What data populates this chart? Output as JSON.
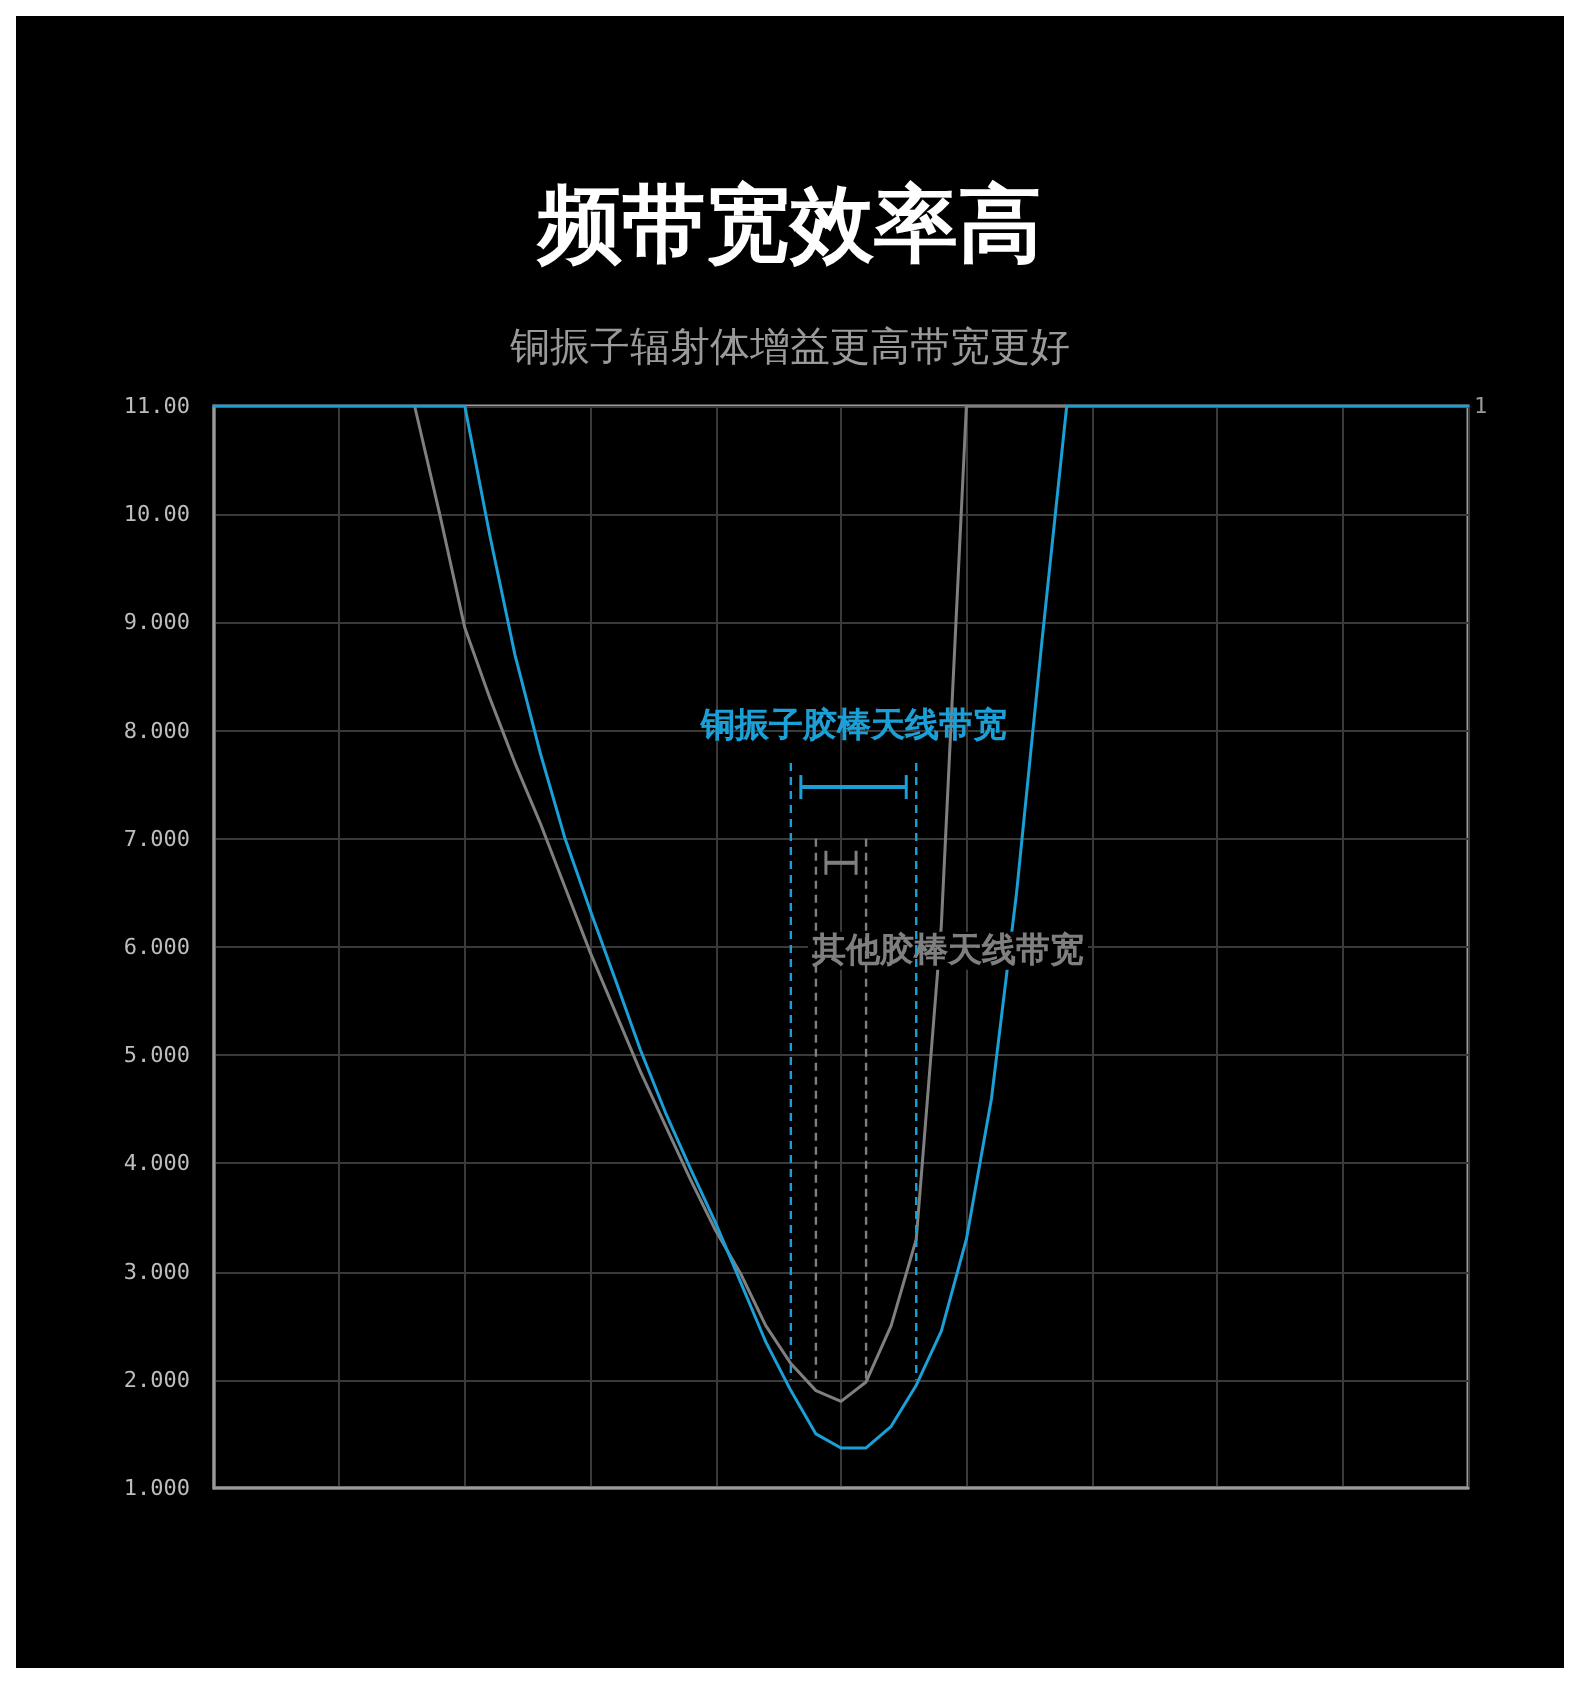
{
  "chart_data": {
    "type": "line",
    "title": "频带宽效率高",
    "subtitle": "铜振子辐射体增益更高带宽更好",
    "categories": [
      null,
      null,
      null,
      null,
      null,
      null,
      null,
      null,
      null,
      null,
      null,
      null,
      null,
      null,
      null,
      null,
      null,
      null,
      null,
      null,
      null,
      null,
      null,
      null,
      null,
      null,
      null,
      null,
      null,
      null,
      null,
      null,
      null,
      null,
      null,
      null,
      null,
      null,
      null,
      null,
      null,
      null,
      null,
      null,
      null,
      null,
      null,
      null,
      null,
      null,
      null
    ],
    "ylim": [
      1,
      11
    ],
    "yticks": [
      {
        "value": 1,
        "label": "1.000"
      },
      {
        "value": 2,
        "label": "2.000"
      },
      {
        "value": 3,
        "label": "3.000"
      },
      {
        "value": 4,
        "label": "4.000"
      },
      {
        "value": 5,
        "label": "5.000"
      },
      {
        "value": 6,
        "label": "6.000"
      },
      {
        "value": 7,
        "label": "7.000"
      },
      {
        "value": 8,
        "label": "8.000"
      },
      {
        "value": 9,
        "label": "9.000"
      },
      {
        "value": 10,
        "label": "10.00"
      },
      {
        "value": 11,
        "label": "11.00"
      }
    ],
    "grid": true,
    "marker": "none",
    "line_style": "solid",
    "series": [
      {
        "color": "#1a9fd6",
        "values": [
          11,
          11,
          11,
          11,
          11,
          11,
          11,
          11,
          11,
          11,
          11,
          9.8,
          8.7,
          7.8,
          7.0,
          6.34,
          5.7,
          5.05,
          4.47,
          3.95,
          3.45,
          2.9,
          2.35,
          1.9,
          1.5,
          1.37,
          1.37,
          1.57,
          1.95,
          2.45,
          3.3,
          4.6,
          6.5,
          8.8,
          11,
          11,
          11,
          11,
          11,
          11,
          11,
          11,
          11,
          11,
          11,
          11,
          11,
          11,
          11,
          11,
          11
        ]
      },
      {
        "color": "#7f7f7f",
        "values": [
          null,
          null,
          null,
          null,
          null,
          null,
          null,
          null,
          11,
          10.0,
          8.95,
          8.3,
          7.7,
          7.15,
          6.55,
          5.95,
          5.4,
          4.85,
          4.35,
          3.85,
          3.38,
          2.98,
          2.5,
          2.15,
          1.9,
          1.8,
          1.98,
          2.5,
          3.3,
          6.2,
          11,
          11,
          11,
          11,
          11,
          null,
          null,
          null,
          null,
          null,
          null,
          null,
          null,
          null,
          null,
          null,
          null,
          null,
          null,
          null,
          null
        ]
      }
    ],
    "annotations": [
      "铜振子胶棒天线带宽",
      "其他胶棒天线带宽",
      "1"
    ]
  }
}
